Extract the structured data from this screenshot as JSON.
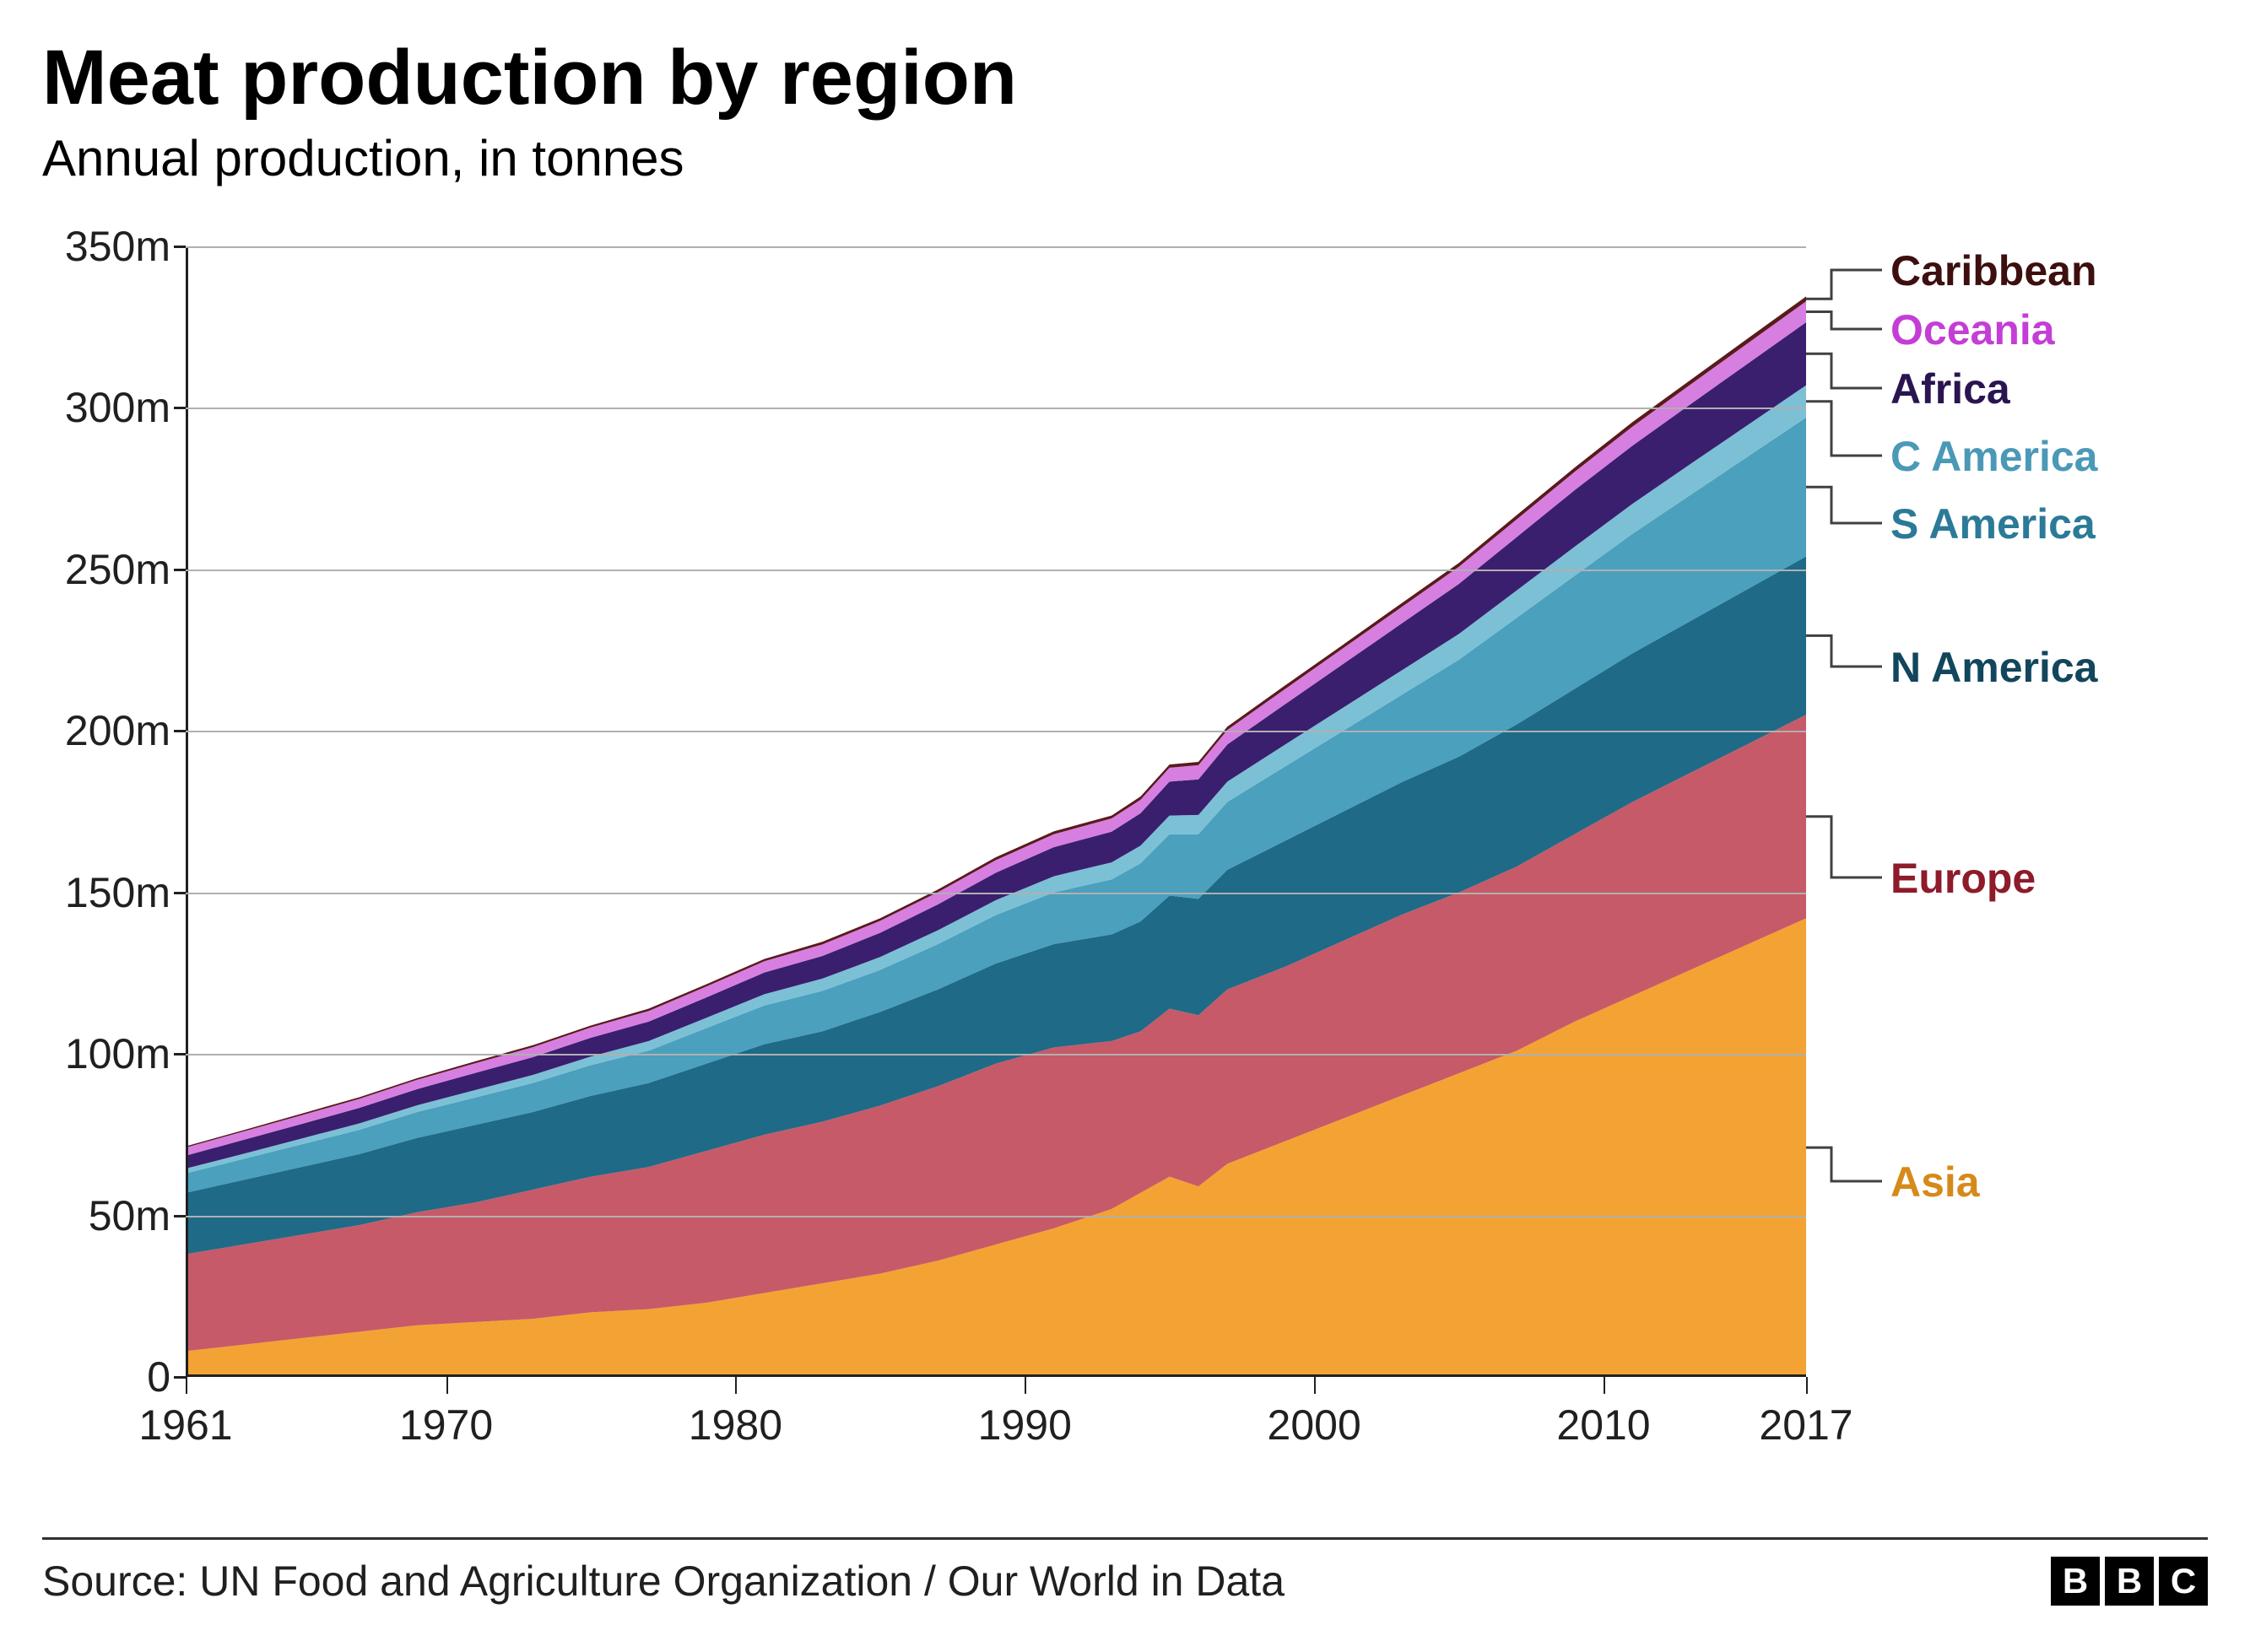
{
  "chart": {
    "type": "area",
    "title": "Meat production by region",
    "subtitle": "Annual production, in tonnes",
    "title_fontsize": 92,
    "subtitle_fontsize": 60,
    "title_color": "#000000",
    "background_color": "#ffffff",
    "grid_color": "#b0b0b0",
    "axis_color": "#202020",
    "label_fontsize": 50,
    "xlim": [
      1961,
      2017
    ],
    "ylim": [
      0,
      350
    ],
    "y_ticks": [
      0,
      50,
      100,
      150,
      200,
      250,
      300,
      350
    ],
    "y_tick_labels": [
      "0",
      "50m",
      "100m",
      "150m",
      "200m",
      "250m",
      "300m",
      "350m"
    ],
    "x_ticks": [
      1961,
      1970,
      1980,
      1990,
      2000,
      2010,
      2017
    ],
    "x_tick_labels": [
      "1961",
      "1970",
      "1980",
      "1990",
      "2000",
      "2010",
      "2017"
    ],
    "years": [
      1961,
      1963,
      1965,
      1967,
      1969,
      1971,
      1973,
      1975,
      1977,
      1979,
      1981,
      1983,
      1985,
      1987,
      1989,
      1991,
      1993,
      1994,
      1995,
      1996,
      1997,
      1999,
      2001,
      2003,
      2005,
      2007,
      2009,
      2011,
      2013,
      2015,
      2017
    ],
    "series": [
      {
        "name": "Asia",
        "color": "#f2a333",
        "label_color": "#d68a1a",
        "values": [
          8,
          10,
          12,
          14,
          16,
          17,
          18,
          20,
          21,
          23,
          26,
          29,
          32,
          36,
          41,
          46,
          52,
          57,
          62,
          59,
          66,
          73,
          80,
          87,
          94,
          101,
          110,
          118,
          126,
          134,
          142
        ]
      },
      {
        "name": "Europe",
        "color": "#c75a68",
        "label_color": "#8e1b2a",
        "values": [
          30,
          31,
          32,
          33,
          35,
          37,
          40,
          42,
          44,
          47,
          49,
          50,
          52,
          54,
          56,
          56,
          52,
          50,
          52,
          53,
          54,
          54,
          55,
          56,
          56,
          57,
          58,
          60,
          61,
          62,
          63
        ]
      },
      {
        "name": "N America",
        "color": "#1f6a87",
        "label_color": "#12465c",
        "values": [
          19,
          20,
          21,
          22,
          23,
          24,
          24,
          25,
          26,
          27,
          28,
          28,
          29,
          30,
          31,
          32,
          33,
          34,
          35,
          36,
          37,
          39,
          40,
          41,
          42,
          44,
          45,
          46,
          47,
          48,
          49
        ]
      },
      {
        "name": "S America",
        "color": "#4aa0bd",
        "label_color": "#2b7a97",
        "values": [
          6,
          6.5,
          7,
          7.5,
          8,
          8.5,
          9,
          9.5,
          10,
          11,
          12,
          12.5,
          13,
          14,
          15,
          16,
          17,
          18,
          19,
          20,
          21,
          23,
          25,
          27,
          30,
          33,
          35,
          37,
          39,
          41,
          43
        ]
      },
      {
        "name": "C America",
        "color": "#7cc0d6",
        "label_color": "#4a99b6",
        "values": [
          1.5,
          1.6,
          1.8,
          2,
          2.1,
          2.3,
          2.5,
          2.7,
          3,
          3.2,
          3.5,
          3.8,
          4,
          4.3,
          4.6,
          5,
          5.3,
          5.5,
          5.8,
          6,
          6.3,
          6.8,
          7.2,
          7.6,
          8,
          8.5,
          9,
          9.3,
          9.6,
          9.8,
          10
        ]
      },
      {
        "name": "Africa",
        "color": "#3a1f6e",
        "label_color": "#2a1550",
        "values": [
          4,
          4.3,
          4.5,
          4.8,
          5,
          5.3,
          5.5,
          5.8,
          6,
          6.3,
          6.7,
          7,
          7.5,
          8,
          8.5,
          9,
          9.5,
          10,
          10.5,
          11,
          11.5,
          12.5,
          13.5,
          14.5,
          15.5,
          16.5,
          17.5,
          18,
          18.5,
          19,
          19.5
        ]
      },
      {
        "name": "Oceania",
        "color": "#d67fe0",
        "label_color": "#c43ed6",
        "values": [
          2.5,
          2.6,
          2.7,
          2.8,
          2.9,
          3,
          3.1,
          3.2,
          3.3,
          3.4,
          3.5,
          3.6,
          3.7,
          3.8,
          3.9,
          4,
          4.1,
          4.2,
          4.3,
          4.4,
          4.5,
          4.7,
          4.9,
          5.1,
          5.3,
          5.5,
          5.7,
          5.9,
          6.1,
          6.3,
          6.5
        ]
      },
      {
        "name": "Caribbean",
        "color": "#5a1a1a",
        "label_color": "#3d0f0f",
        "values": [
          0.4,
          0.4,
          0.5,
          0.5,
          0.5,
          0.6,
          0.6,
          0.6,
          0.7,
          0.7,
          0.7,
          0.8,
          0.8,
          0.8,
          0.9,
          0.9,
          0.9,
          1,
          1,
          1,
          1,
          1.1,
          1.1,
          1.2,
          1.2,
          1.3,
          1.3,
          1.4,
          1.4,
          1.5,
          1.5
        ]
      }
    ],
    "legend_order": [
      "Caribbean",
      "Oceania",
      "Africa",
      "C America",
      "S America",
      "N America",
      "Europe",
      "Asia"
    ],
    "legend_positions_y": [
      0,
      70,
      140,
      220,
      300,
      470,
      720,
      1080
    ],
    "legend_fontsize": 50,
    "legend_fontweight": "bold",
    "source": "Source: UN Food and Agriculture Organization / Our World in Data",
    "logo": [
      "B",
      "B",
      "C"
    ]
  }
}
